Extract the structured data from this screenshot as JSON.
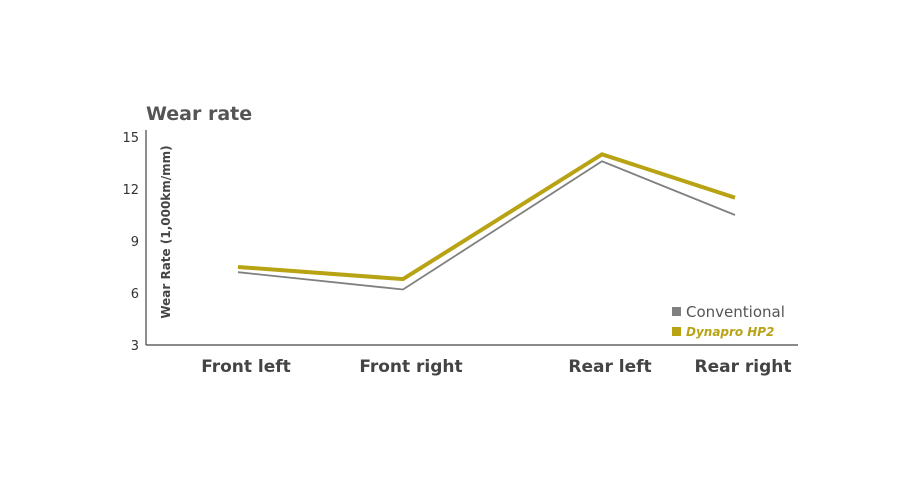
{
  "chart_data": {
    "type": "line",
    "title": "Wear rate",
    "xlabel": "",
    "ylabel": "Wear Rate (1,000km/mm)",
    "categories": [
      "Front left",
      "Front right",
      "Rear left",
      "Rear right"
    ],
    "ylim": [
      3,
      15
    ],
    "yticks": [
      "3",
      "6",
      "9",
      "12",
      "15"
    ],
    "grid": false,
    "legend_position": "bottom-right",
    "series": [
      {
        "name": "Conventional",
        "values": [
          7.2,
          6.2,
          13.6,
          10.5
        ],
        "color": "#808080"
      },
      {
        "name": "Dynapro HP2",
        "name_parts": [
          "Dynapro",
          "HP2"
        ],
        "values": [
          7.5,
          6.8,
          14.0,
          11.5
        ],
        "color": "#b8a315"
      }
    ]
  }
}
